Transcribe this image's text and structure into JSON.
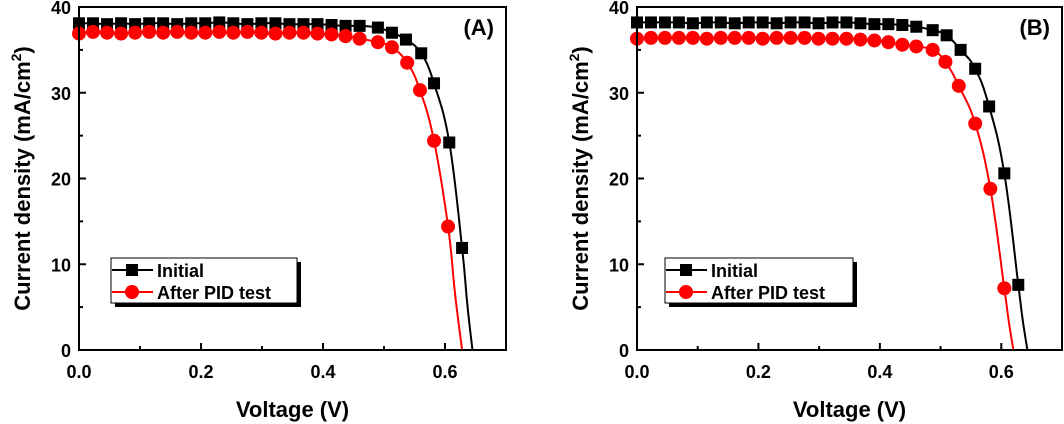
{
  "chart_data": [
    {
      "type": "line",
      "panel_label": "(A)",
      "xlabel": "Voltage (V)",
      "ylabel_main": "Current density (mA/cm",
      "ylabel_sup": "2",
      "ylabel_close": ")",
      "xlim": [
        0.0,
        0.7
      ],
      "ylim": [
        0,
        40
      ],
      "xticks": [
        0.0,
        0.2,
        0.4,
        0.6
      ],
      "xtick_labels": [
        "0.0",
        "0.2",
        "0.4",
        "0.6"
      ],
      "yticks": [
        0,
        10,
        20,
        30,
        40
      ],
      "ytick_labels": [
        "0",
        "10",
        "20",
        "30",
        "40"
      ],
      "grid": false,
      "legend_position": "bottom-left",
      "series": [
        {
          "name": "Initial",
          "color": "#000000",
          "marker": "square",
          "x": [
            0.0,
            0.023,
            0.046,
            0.069,
            0.092,
            0.115,
            0.138,
            0.161,
            0.184,
            0.207,
            0.23,
            0.253,
            0.276,
            0.299,
            0.322,
            0.345,
            0.368,
            0.391,
            0.414,
            0.437,
            0.46,
            0.49,
            0.513,
            0.536,
            0.561,
            0.582,
            0.607,
            0.628
          ],
          "y": [
            38.1,
            38.1,
            38.0,
            38.1,
            38.0,
            38.1,
            38.1,
            38.0,
            38.1,
            38.1,
            38.2,
            38.1,
            38.0,
            38.1,
            38.1,
            38.0,
            38.0,
            38.0,
            37.9,
            37.8,
            37.8,
            37.6,
            37.0,
            36.2,
            34.6,
            31.1,
            24.2,
            11.9
          ],
          "voc": 0.645
        },
        {
          "name": "After PID test",
          "color": "#ff0000",
          "marker": "circle",
          "x": [
            0.0,
            0.023,
            0.046,
            0.069,
            0.092,
            0.115,
            0.138,
            0.161,
            0.184,
            0.207,
            0.23,
            0.253,
            0.276,
            0.299,
            0.322,
            0.345,
            0.368,
            0.391,
            0.414,
            0.437,
            0.46,
            0.49,
            0.513,
            0.538,
            0.559,
            0.582,
            0.605
          ],
          "y": [
            36.9,
            37.1,
            37.0,
            36.9,
            37.0,
            37.1,
            37.0,
            37.1,
            37.0,
            37.0,
            37.1,
            37.0,
            37.1,
            37.0,
            36.9,
            37.0,
            37.0,
            36.9,
            36.8,
            36.6,
            36.3,
            35.9,
            35.3,
            33.5,
            30.3,
            24.4,
            14.4
          ],
          "voc": 0.628
        }
      ]
    },
    {
      "type": "line",
      "panel_label": "(B)",
      "xlabel": "Voltage (V)",
      "ylabel_main": "Current density (mA/cm",
      "ylabel_sup": "2",
      "ylabel_close": ")",
      "xlim": [
        0.0,
        0.7
      ],
      "ylim": [
        0,
        40
      ],
      "xticks": [
        0.0,
        0.2,
        0.4,
        0.6
      ],
      "xtick_labels": [
        "0.0",
        "0.2",
        "0.4",
        "0.6"
      ],
      "yticks": [
        0,
        10,
        20,
        30,
        40
      ],
      "ytick_labels": [
        "0",
        "10",
        "20",
        "30",
        "40"
      ],
      "grid": false,
      "legend_position": "bottom-left",
      "series": [
        {
          "name": "Initial",
          "color": "#000000",
          "marker": "square",
          "x": [
            0.0,
            0.023,
            0.046,
            0.069,
            0.092,
            0.115,
            0.138,
            0.161,
            0.184,
            0.207,
            0.23,
            0.253,
            0.276,
            0.299,
            0.322,
            0.345,
            0.368,
            0.391,
            0.414,
            0.437,
            0.46,
            0.487,
            0.51,
            0.533,
            0.557,
            0.58,
            0.605,
            0.628
          ],
          "y": [
            38.2,
            38.2,
            38.2,
            38.2,
            38.1,
            38.2,
            38.2,
            38.1,
            38.2,
            38.2,
            38.1,
            38.2,
            38.2,
            38.1,
            38.2,
            38.2,
            38.1,
            38.0,
            38.0,
            37.9,
            37.7,
            37.3,
            36.7,
            35.0,
            32.8,
            28.4,
            20.6,
            7.6
          ],
          "voc": 0.643
        },
        {
          "name": "After PID test",
          "color": "#ff0000",
          "marker": "circle",
          "x": [
            0.0,
            0.023,
            0.046,
            0.069,
            0.092,
            0.115,
            0.138,
            0.161,
            0.184,
            0.207,
            0.23,
            0.253,
            0.276,
            0.299,
            0.322,
            0.345,
            0.368,
            0.391,
            0.414,
            0.437,
            0.46,
            0.487,
            0.508,
            0.53,
            0.557,
            0.582,
            0.605
          ],
          "y": [
            36.3,
            36.4,
            36.4,
            36.4,
            36.4,
            36.3,
            36.4,
            36.4,
            36.4,
            36.3,
            36.4,
            36.4,
            36.4,
            36.3,
            36.3,
            36.3,
            36.2,
            36.1,
            35.9,
            35.6,
            35.4,
            35.0,
            33.6,
            30.8,
            26.4,
            18.8,
            7.2
          ],
          "voc": 0.62
        }
      ]
    }
  ]
}
